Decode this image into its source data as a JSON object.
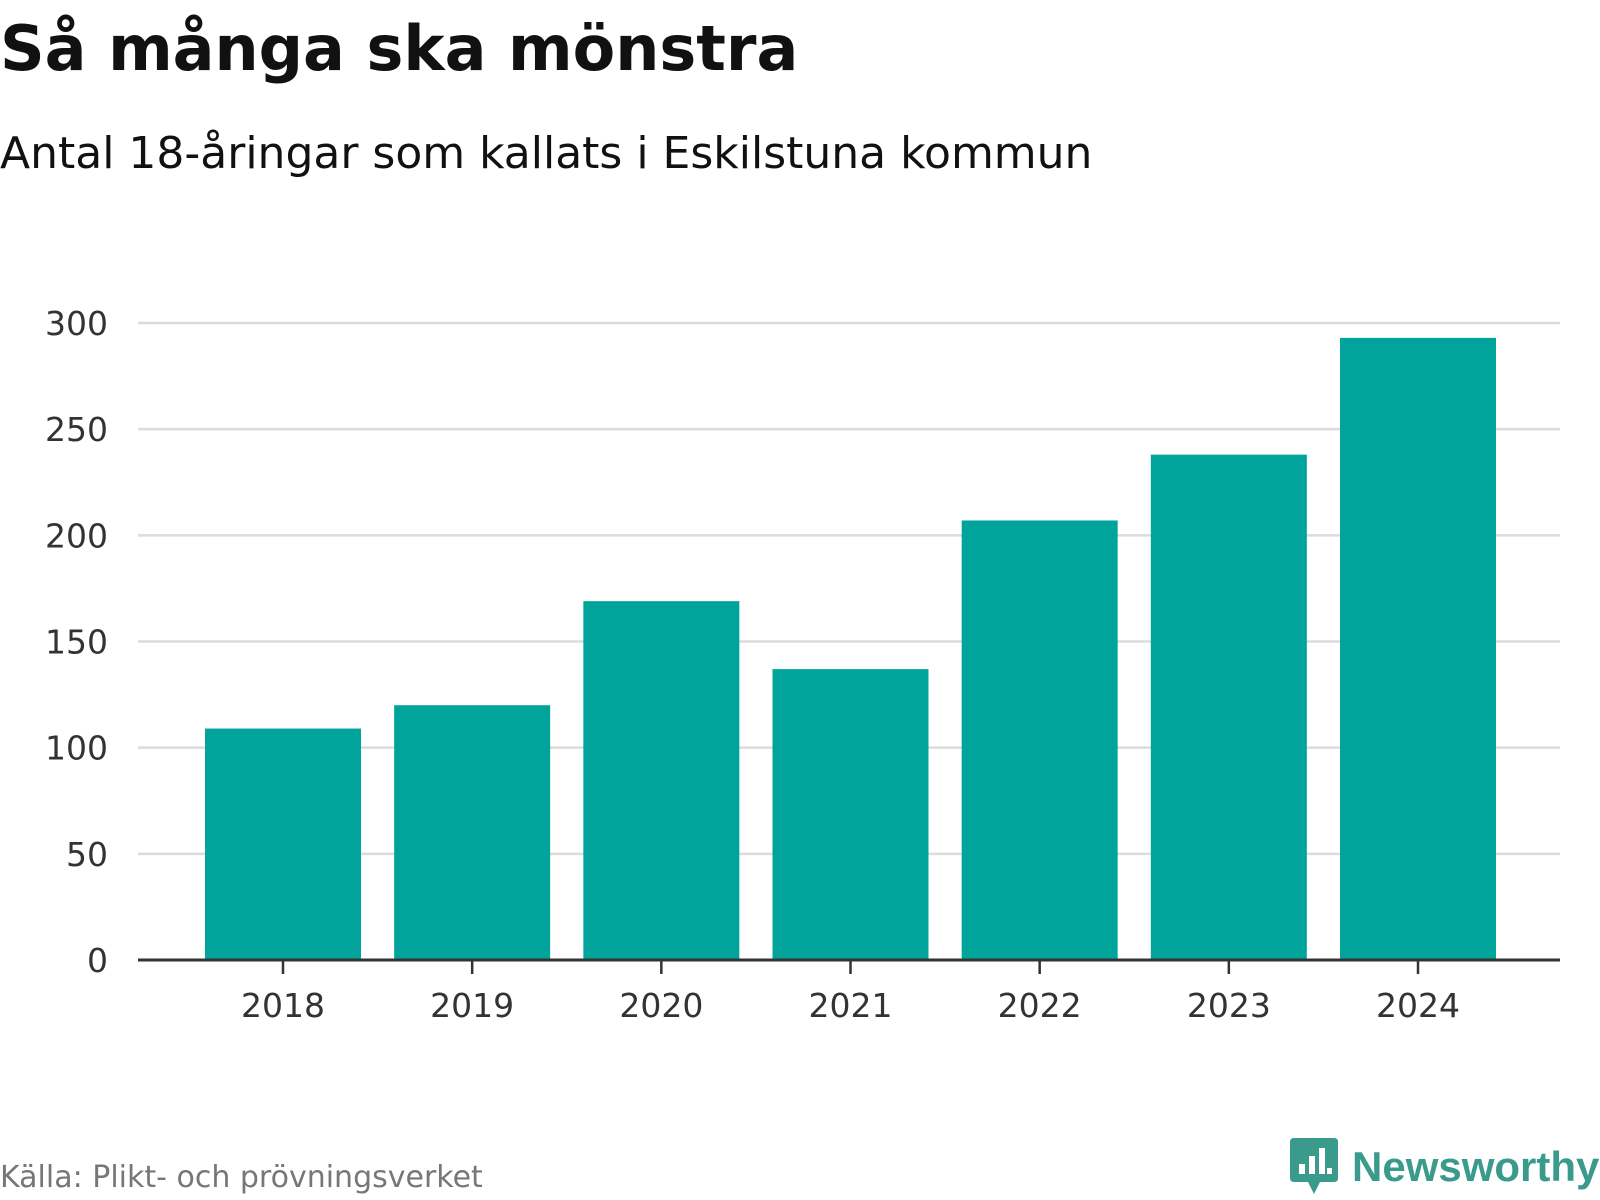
{
  "chart_data": {
    "type": "bar",
    "title": "Så många ska mönstra",
    "subtitle": "Antal 18-åringar som kallats i Eskilstuna kommun",
    "categories": [
      "2018",
      "2019",
      "2020",
      "2021",
      "2022",
      "2023",
      "2024"
    ],
    "values": [
      109,
      120,
      169,
      137,
      207,
      238,
      293
    ],
    "ylim": [
      0,
      300
    ],
    "yticks": [
      0,
      50,
      100,
      150,
      200,
      250,
      300
    ],
    "xlabel": "",
    "ylabel": "",
    "grid": true,
    "bar_color": "#00a49a"
  },
  "source": "Källa: Plikt- och prövningsverket",
  "brand": {
    "name": "Newsworthy",
    "color": "#3a9a8c",
    "icon": "newsworthy-logo-icon"
  }
}
